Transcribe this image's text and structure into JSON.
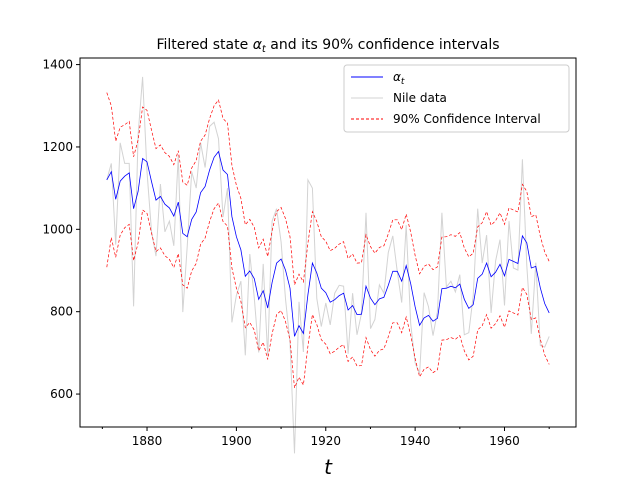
{
  "chart_data": {
    "type": "line",
    "title": "Filtered state αt and its 90% confidence intervals",
    "title_prefix": "Filtered state ",
    "title_symbol": "α",
    "title_subscript": "t",
    "title_suffix": " and its 90% confidence intervals",
    "xlabel": "t",
    "ylabel": "",
    "xlim": [
      1865,
      1976
    ],
    "ylim": [
      520,
      1416
    ],
    "xticks": [
      1880,
      1900,
      1920,
      1940,
      1960
    ],
    "xtick_labels": [
      "1880",
      "1900",
      "1920",
      "1940",
      "1960"
    ],
    "minor_xticks": [
      1870,
      1890,
      1910,
      1930,
      1950,
      1970
    ],
    "yticks": [
      600,
      800,
      1000,
      1200,
      1400
    ],
    "ytick_labels": [
      "600",
      "800",
      "1000",
      "1200",
      "1400"
    ],
    "grid": false,
    "legend_position": "upper right",
    "x": [
      1871,
      1872,
      1873,
      1874,
      1875,
      1876,
      1877,
      1878,
      1879,
      1880,
      1881,
      1882,
      1883,
      1884,
      1885,
      1886,
      1887,
      1888,
      1889,
      1890,
      1891,
      1892,
      1893,
      1894,
      1895,
      1896,
      1897,
      1898,
      1899,
      1900,
      1901,
      1902,
      1903,
      1904,
      1905,
      1906,
      1907,
      1908,
      1909,
      1910,
      1911,
      1912,
      1913,
      1914,
      1915,
      1916,
      1917,
      1918,
      1919,
      1920,
      1921,
      1922,
      1923,
      1924,
      1925,
      1926,
      1927,
      1928,
      1929,
      1930,
      1931,
      1932,
      1933,
      1934,
      1935,
      1936,
      1937,
      1938,
      1939,
      1940,
      1941,
      1942,
      1943,
      1944,
      1945,
      1946,
      1947,
      1948,
      1949,
      1950,
      1951,
      1952,
      1953,
      1954,
      1955,
      1956,
      1957,
      1958,
      1959,
      1960,
      1961,
      1962,
      1963,
      1964,
      1965,
      1966,
      1967,
      1968,
      1969,
      1970
    ],
    "series": [
      {
        "name": "Nile data",
        "color": "#d3d3d3",
        "values": [
          1120,
          1160,
          963,
          1210,
          1160,
          1160,
          813,
          1230,
          1370,
          1140,
          995,
          935,
          1110,
          994,
          1020,
          960,
          1180,
          799,
          958,
          1140,
          1100,
          1210,
          1150,
          1250,
          1260,
          1220,
          1030,
          1100,
          774,
          840,
          874,
          694,
          940,
          833,
          701,
          916,
          692,
          1020,
          1050,
          969,
          831,
          726,
          456,
          824,
          702,
          1120,
          1100,
          832,
          764,
          821,
          768,
          845,
          864,
          862,
          698,
          845,
          744,
          796,
          1040,
          759,
          781,
          865,
          845,
          944,
          984,
          897,
          822,
          1010,
          771,
          676,
          649,
          846,
          812,
          742,
          801,
          1040,
          860,
          874,
          848,
          890,
          744,
          749,
          838,
          1050,
          918,
          986,
          797,
          923,
          975,
          815,
          1020,
          906,
          901,
          1170,
          912,
          746,
          919,
          718,
          714,
          740
        ]
      },
      {
        "name": "αt",
        "color": "#0000ff",
        "values": [
          1120,
          1140,
          1073,
          1117,
          1129,
          1137,
          1050,
          1092,
          1172,
          1164,
          1116,
          1071,
          1080,
          1061,
          1052,
          1032,
          1066,
          990,
          982,
          1024,
          1042,
          1089,
          1104,
          1144,
          1175,
          1189,
          1144,
          1133,
          1031,
          982,
          950,
          886,
          899,
          880,
          830,
          851,
          809,
          871,
          918,
          928,
          901,
          857,
          740,
          766,
          747,
          841,
          918,
          894,
          857,
          846,
          823,
          829,
          839,
          845,
          804,
          815,
          793,
          794,
          862,
          833,
          817,
          831,
          835,
          864,
          898,
          898,
          874,
          912,
          868,
          812,
          767,
          785,
          791,
          777,
          784,
          856,
          857,
          862,
          858,
          867,
          830,
          808,
          817,
          881,
          891,
          918,
          885,
          896,
          915,
          887,
          927,
          922,
          917,
          984,
          967,
          906,
          910,
          858,
          820,
          797
        ]
      },
      {
        "name": "90% Confidence Interval (upper)",
        "color": "#ff0000",
        "values": [
          1332,
          1300,
          1214,
          1248,
          1254,
          1262,
          1176,
          1217,
          1297,
          1289,
          1241,
          1196,
          1205,
          1186,
          1177,
          1157,
          1191,
          1115,
          1107,
          1149,
          1167,
          1214,
          1229,
          1269,
          1300,
          1314,
          1269,
          1258,
          1156,
          1107,
          1075,
          1011,
          1024,
          1005,
          955,
          976,
          934,
          996,
          1043,
          1053,
          1026,
          982,
          865,
          891,
          872,
          966,
          1043,
          1019,
          982,
          971,
          948,
          954,
          964,
          970,
          929,
          940,
          918,
          919,
          987,
          958,
          942,
          956,
          960,
          989,
          1023,
          1023,
          999,
          1037,
          993,
          937,
          892,
          910,
          916,
          902,
          909,
          981,
          982,
          987,
          983,
          992,
          955,
          933,
          942,
          1006,
          1016,
          1043,
          1010,
          1021,
          1040,
          1012,
          1052,
          1047,
          1042,
          1109,
          1092,
          1031,
          1035,
          983,
          945,
          922
        ]
      },
      {
        "name": "90% Confidence Interval",
        "color": "#ff0000",
        "values": [
          908,
          980,
          932,
          986,
          1004,
          1012,
          924,
          967,
          1047,
          1039,
          991,
          946,
          955,
          936,
          927,
          907,
          941,
          865,
          857,
          899,
          917,
          964,
          979,
          1019,
          1050,
          1064,
          1019,
          1008,
          906,
          857,
          825,
          761,
          774,
          755,
          705,
          726,
          684,
          746,
          793,
          803,
          776,
          732,
          615,
          641,
          622,
          716,
          793,
          769,
          732,
          721,
          698,
          704,
          714,
          720,
          679,
          690,
          668,
          669,
          737,
          708,
          692,
          706,
          710,
          739,
          773,
          773,
          749,
          787,
          743,
          687,
          642,
          660,
          666,
          652,
          659,
          731,
          732,
          737,
          733,
          742,
          705,
          683,
          692,
          756,
          766,
          793,
          760,
          771,
          790,
          762,
          802,
          797,
          792,
          859,
          842,
          781,
          785,
          733,
          695,
          672
        ]
      }
    ],
    "legend": [
      {
        "label_main": "α",
        "label_sub": "t",
        "color": "#0000ff",
        "style": "solid"
      },
      {
        "label_main": "Nile data",
        "label_sub": "",
        "color": "#d3d3d3",
        "style": "solid"
      },
      {
        "label_main": "90% Confidence Interval",
        "label_sub": "",
        "color": "#ff0000",
        "style": "dashed"
      }
    ]
  }
}
